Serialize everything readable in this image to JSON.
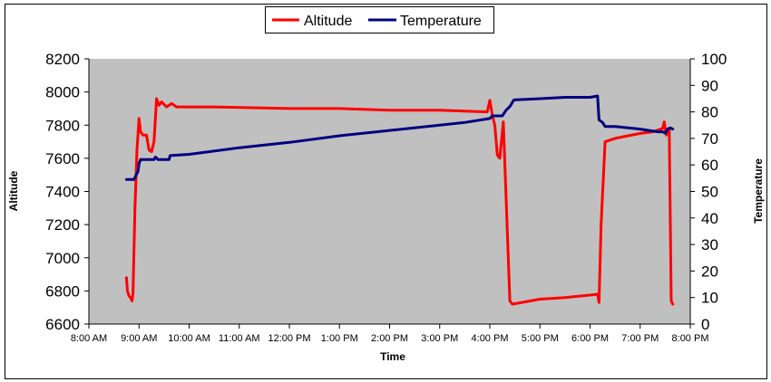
{
  "chart_data": {
    "type": "line",
    "title": "",
    "xlabel": "Time",
    "ylabel": "Altitude",
    "y2label": "Temperature",
    "x_ticks": [
      "8:00 AM",
      "9:00 AM",
      "10:00 AM",
      "11:00 AM",
      "12:00 PM",
      "1:00 PM",
      "2:00 PM",
      "3:00 PM",
      "4:00 PM",
      "5:00 PM",
      "6:00 PM",
      "7:00 PM",
      "8:00 PM"
    ],
    "y_ticks": [
      "6600",
      "6800",
      "7000",
      "7200",
      "7400",
      "7600",
      "7800",
      "8000",
      "8200"
    ],
    "y2_ticks": [
      "0",
      "10",
      "20",
      "30",
      "40",
      "50",
      "60",
      "70",
      "80",
      "90",
      "100"
    ],
    "ylim": [
      6600,
      8200
    ],
    "y2lim": [
      0,
      100
    ],
    "xlim_hours": [
      8,
      20
    ],
    "legend": {
      "position": "top",
      "entries": [
        "Altitude",
        "Temperature"
      ]
    },
    "plot_background": "#c0c0c0",
    "grid": false,
    "series": [
      {
        "name": "Altitude",
        "axis": "left",
        "color": "#ff0000",
        "points": [
          [
            8.75,
            6880
          ],
          [
            8.77,
            6800
          ],
          [
            8.8,
            6770
          ],
          [
            8.83,
            6760
          ],
          [
            8.86,
            6740
          ],
          [
            8.88,
            6780
          ],
          [
            8.92,
            7300
          ],
          [
            8.96,
            7650
          ],
          [
            9.0,
            7840
          ],
          [
            9.03,
            7760
          ],
          [
            9.08,
            7740
          ],
          [
            9.15,
            7740
          ],
          [
            9.2,
            7650
          ],
          [
            9.25,
            7640
          ],
          [
            9.3,
            7700
          ],
          [
            9.35,
            7960
          ],
          [
            9.4,
            7920
          ],
          [
            9.45,
            7940
          ],
          [
            9.55,
            7910
          ],
          [
            9.65,
            7930
          ],
          [
            9.75,
            7910
          ],
          [
            10.5,
            7910
          ],
          [
            12.0,
            7900
          ],
          [
            13.0,
            7900
          ],
          [
            14.0,
            7890
          ],
          [
            15.0,
            7890
          ],
          [
            15.95,
            7880
          ],
          [
            16.0,
            7950
          ],
          [
            16.05,
            7860
          ],
          [
            16.1,
            7800
          ],
          [
            16.15,
            7620
          ],
          [
            16.2,
            7600
          ],
          [
            16.27,
            7820
          ],
          [
            16.32,
            7400
          ],
          [
            16.4,
            6740
          ],
          [
            16.45,
            6720
          ],
          [
            17.0,
            6750
          ],
          [
            17.5,
            6760
          ],
          [
            18.0,
            6775
          ],
          [
            18.15,
            6780
          ],
          [
            18.18,
            6730
          ],
          [
            18.22,
            7200
          ],
          [
            18.3,
            7700
          ],
          [
            18.5,
            7720
          ],
          [
            19.0,
            7750
          ],
          [
            19.25,
            7760
          ],
          [
            19.45,
            7780
          ],
          [
            19.48,
            7820
          ],
          [
            19.52,
            7740
          ],
          [
            19.58,
            7780
          ],
          [
            19.62,
            6740
          ],
          [
            19.65,
            6720
          ]
        ]
      },
      {
        "name": "Temperature",
        "axis": "right",
        "color": "#000080",
        "points": [
          [
            8.75,
            54.5
          ],
          [
            8.9,
            54.5
          ],
          [
            8.95,
            56.5
          ],
          [
            8.98,
            57.5
          ],
          [
            9.0,
            60.5
          ],
          [
            9.03,
            62
          ],
          [
            9.3,
            62
          ],
          [
            9.33,
            63
          ],
          [
            9.38,
            62
          ],
          [
            9.6,
            62
          ],
          [
            9.62,
            63.5
          ],
          [
            10.0,
            64
          ],
          [
            11.0,
            66.5
          ],
          [
            12.0,
            68.5
          ],
          [
            13.0,
            71
          ],
          [
            14.0,
            73
          ],
          [
            15.0,
            75
          ],
          [
            15.5,
            76
          ],
          [
            16.0,
            77.5
          ],
          [
            16.05,
            78.5
          ],
          [
            16.25,
            78.5
          ],
          [
            16.32,
            80.5
          ],
          [
            16.4,
            82
          ],
          [
            16.48,
            84.5
          ],
          [
            17.0,
            85
          ],
          [
            17.5,
            85.5
          ],
          [
            18.0,
            85.5
          ],
          [
            18.15,
            86
          ],
          [
            18.18,
            77
          ],
          [
            18.25,
            76
          ],
          [
            18.3,
            74.5
          ],
          [
            18.5,
            74.5
          ],
          [
            19.0,
            73.5
          ],
          [
            19.35,
            72.5
          ],
          [
            19.45,
            72.5
          ],
          [
            19.5,
            72
          ],
          [
            19.55,
            73.5
          ],
          [
            19.6,
            74
          ],
          [
            19.65,
            73.5
          ]
        ]
      }
    ]
  }
}
